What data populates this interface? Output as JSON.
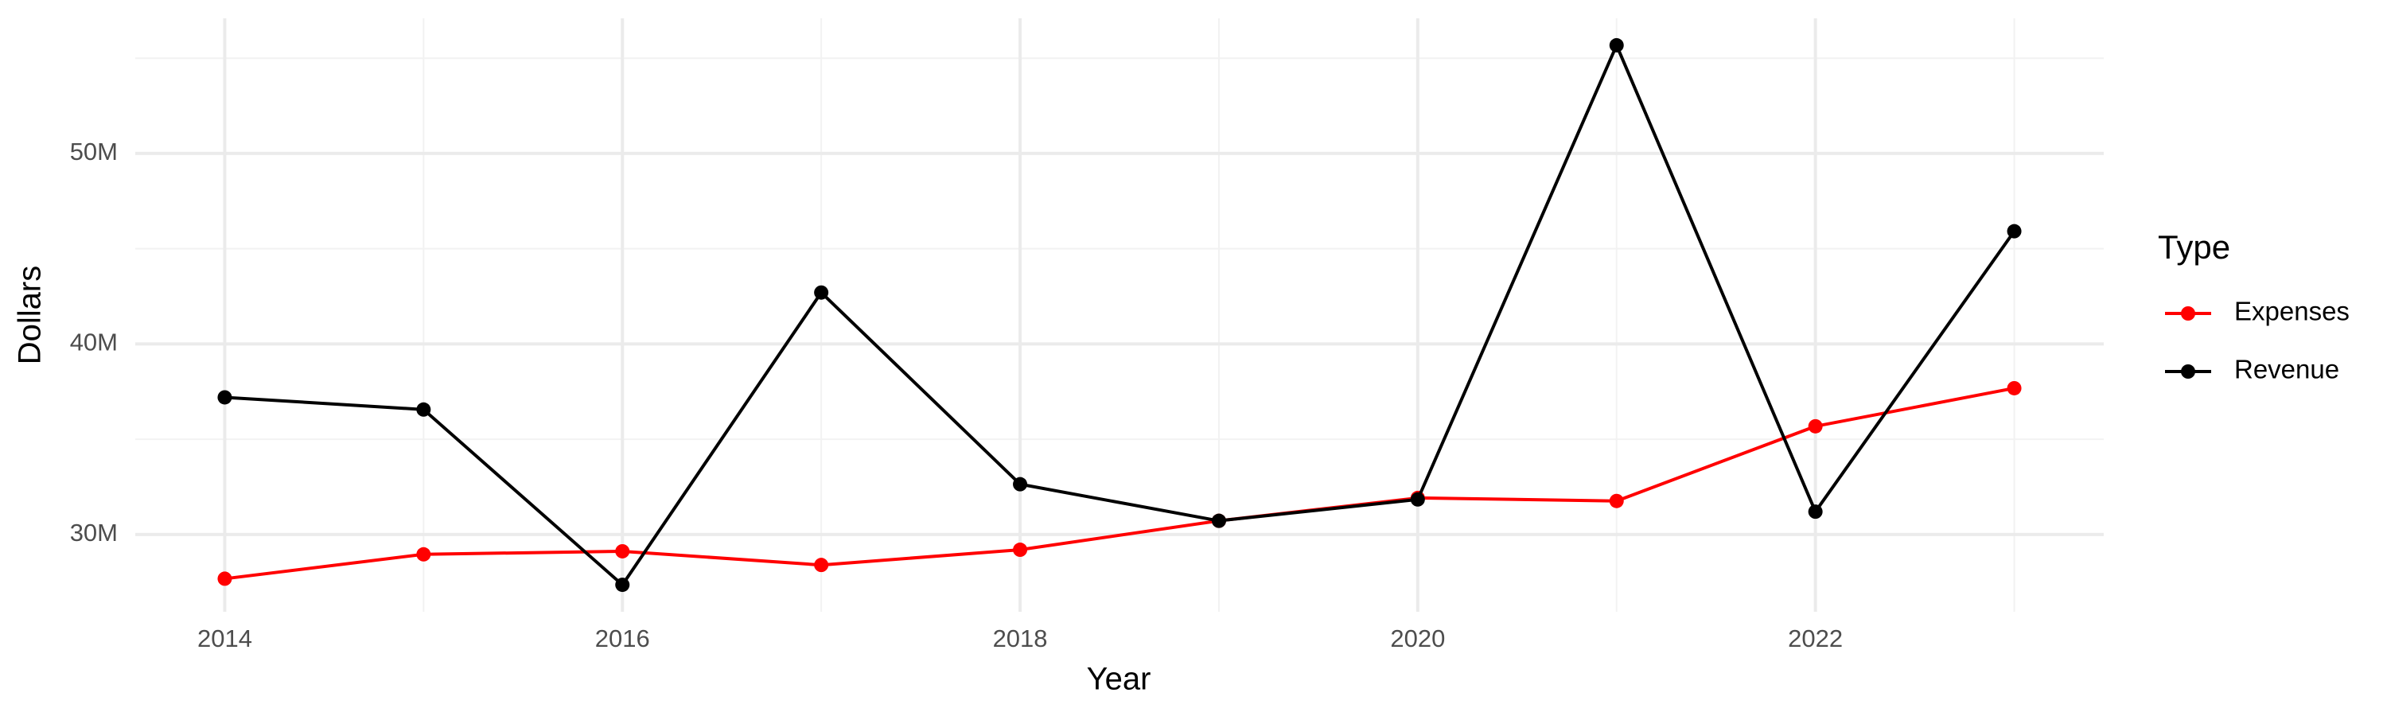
{
  "chart_data": {
    "type": "line",
    "x_label": "Year",
    "y_label": "Dollars",
    "legend_title": "Type",
    "x": [
      2014,
      2015,
      2016,
      2017,
      2018,
      2019,
      2020,
      2021,
      2022,
      2023
    ],
    "series": [
      {
        "name": "Expenses",
        "color": "#ff0000",
        "values": [
          27680000,
          28960000,
          29120000,
          28400000,
          29200000,
          30720000,
          31920000,
          31760000,
          35680000,
          37680000
        ]
      },
      {
        "name": "Revenue",
        "color": "#000000",
        "values": [
          37200000,
          36560000,
          27360000,
          42700000,
          32640000,
          30720000,
          31840000,
          55680000,
          31200000,
          45920000
        ]
      }
    ],
    "xlim": [
      2013.55,
      2023.45
    ],
    "xticks": [
      2014,
      2016,
      2018,
      2020,
      2022
    ],
    "x_minor_ticks": [
      2015,
      2017,
      2019,
      2021,
      2023
    ],
    "ylim": [
      25944000,
      57096000
    ],
    "yticks": [
      {
        "value": 30000000,
        "label": "30M"
      },
      {
        "value": 40000000,
        "label": "40M"
      },
      {
        "value": 50000000,
        "label": "50M"
      }
    ],
    "y_minor_ticks": [
      35000000,
      45000000,
      55000000
    ],
    "grid": true,
    "legend_position": "right"
  }
}
